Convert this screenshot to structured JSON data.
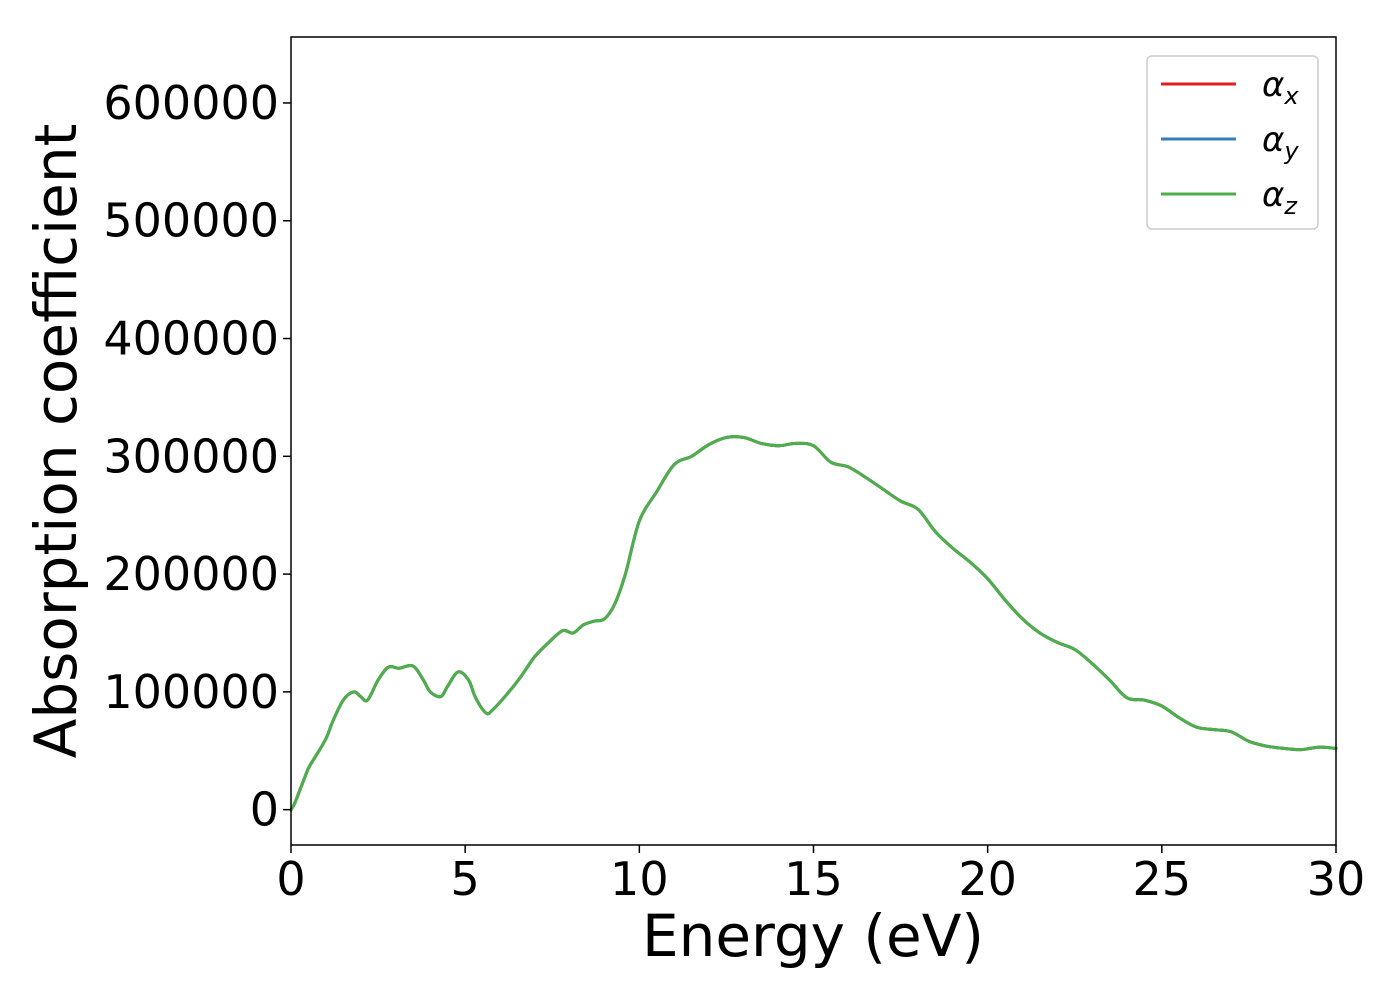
{
  "chart_data": {
    "type": "line",
    "title": "",
    "xlabel": "Energy (eV)",
    "ylabel": "Absorption coefficient",
    "xlim": [
      0,
      30
    ],
    "ylim": [
      -30000,
      656000
    ],
    "xticks": [
      0,
      5,
      10,
      15,
      20,
      25,
      30
    ],
    "yticks": [
      0,
      100000,
      200000,
      300000,
      400000,
      500000,
      600000
    ],
    "grid": false,
    "legend_position": "top-right",
    "series": [
      {
        "name": "α",
        "subscript": "x",
        "color": "#e41a1c",
        "x": [
          0,
          0.1,
          0.3,
          0.5,
          0.7,
          1.0,
          1.2,
          1.5,
          1.8,
          2.0,
          2.2,
          2.5,
          2.8,
          3.1,
          3.5,
          3.8,
          4.0,
          4.3,
          4.5,
          4.8,
          5.1,
          5.3,
          5.6,
          5.8,
          6.2,
          6.6,
          7.0,
          7.4,
          7.8,
          8.1,
          8.4,
          8.7,
          9.0,
          9.3,
          9.6,
          10.0,
          10.5,
          11.0,
          11.5,
          12.0,
          12.5,
          13.0,
          13.5,
          14.0,
          14.5,
          15.0,
          15.5,
          16.0,
          16.5,
          17.0,
          17.5,
          18.0,
          18.5,
          19.0,
          19.5,
          20.0,
          20.5,
          21.0,
          21.5,
          22.0,
          22.5,
          23.0,
          23.5,
          24.0,
          24.5,
          25.0,
          25.5,
          26.0,
          26.5,
          27.0,
          27.5,
          28.0,
          28.5,
          29.0,
          29.5,
          30.0
        ],
        "values": [
          0,
          5000,
          20000,
          35000,
          45000,
          60000,
          75000,
          93000,
          100000,
          96000,
          93000,
          110000,
          121000,
          120000,
          122000,
          110000,
          100000,
          96000,
          105000,
          117000,
          110000,
          95000,
          82000,
          85000,
          98000,
          113000,
          130000,
          142000,
          152000,
          150000,
          157000,
          160000,
          162000,
          175000,
          200000,
          245000,
          270000,
          293000,
          300000,
          310000,
          316000,
          316000,
          311000,
          309000,
          311000,
          309000,
          295000,
          291000,
          282000,
          272000,
          262000,
          255000,
          236000,
          222000,
          210000,
          196000,
          178000,
          162000,
          150000,
          142000,
          136000,
          124000,
          110000,
          95000,
          93000,
          88000,
          78000,
          70000,
          68000,
          66000,
          58000,
          54000,
          52000,
          51000,
          53000,
          52000
        ]
      },
      {
        "name": "α",
        "subscript": "y",
        "color": "#377eb8",
        "x": [
          0,
          0.1,
          0.3,
          0.5,
          0.7,
          1.0,
          1.2,
          1.5,
          1.8,
          2.0,
          2.2,
          2.5,
          2.8,
          3.1,
          3.5,
          3.8,
          4.0,
          4.3,
          4.5,
          4.8,
          5.1,
          5.3,
          5.6,
          5.8,
          6.2,
          6.6,
          7.0,
          7.4,
          7.8,
          8.1,
          8.4,
          8.7,
          9.0,
          9.3,
          9.6,
          10.0,
          10.5,
          11.0,
          11.5,
          12.0,
          12.5,
          13.0,
          13.5,
          14.0,
          14.5,
          15.0,
          15.5,
          16.0,
          16.5,
          17.0,
          17.5,
          18.0,
          18.5,
          19.0,
          19.5,
          20.0,
          20.5,
          21.0,
          21.5,
          22.0,
          22.5,
          23.0,
          23.5,
          24.0,
          24.5,
          25.0,
          25.5,
          26.0,
          26.5,
          27.0,
          27.5,
          28.0,
          28.5,
          29.0,
          29.5,
          30.0
        ],
        "values": [
          0,
          5000,
          20000,
          35000,
          45000,
          60000,
          75000,
          93000,
          100000,
          96000,
          93000,
          110000,
          121000,
          120000,
          122000,
          110000,
          100000,
          96000,
          105000,
          117000,
          110000,
          95000,
          82000,
          85000,
          98000,
          113000,
          130000,
          142000,
          152000,
          150000,
          157000,
          160000,
          162000,
          175000,
          200000,
          245000,
          270000,
          293000,
          300000,
          310000,
          316000,
          316000,
          311000,
          309000,
          311000,
          309000,
          295000,
          291000,
          282000,
          272000,
          262000,
          255000,
          236000,
          222000,
          210000,
          196000,
          178000,
          162000,
          150000,
          142000,
          136000,
          124000,
          110000,
          95000,
          93000,
          88000,
          78000,
          70000,
          68000,
          66000,
          58000,
          54000,
          52000,
          51000,
          53000,
          52000
        ]
      },
      {
        "name": "α",
        "subscript": "z",
        "color": "#4daf4a",
        "x": [
          0,
          0.1,
          0.3,
          0.5,
          0.7,
          1.0,
          1.2,
          1.5,
          1.8,
          2.0,
          2.2,
          2.5,
          2.8,
          3.1,
          3.5,
          3.8,
          4.0,
          4.3,
          4.5,
          4.8,
          5.1,
          5.3,
          5.6,
          5.8,
          6.2,
          6.6,
          7.0,
          7.4,
          7.8,
          8.1,
          8.4,
          8.7,
          9.0,
          9.3,
          9.6,
          10.0,
          10.5,
          11.0,
          11.5,
          12.0,
          12.5,
          13.0,
          13.5,
          14.0,
          14.5,
          15.0,
          15.5,
          16.0,
          16.5,
          17.0,
          17.5,
          18.0,
          18.5,
          19.0,
          19.5,
          20.0,
          20.5,
          21.0,
          21.5,
          22.0,
          22.5,
          23.0,
          23.5,
          24.0,
          24.5,
          25.0,
          25.5,
          26.0,
          26.5,
          27.0,
          27.5,
          28.0,
          28.5,
          29.0,
          29.5,
          30.0
        ],
        "values": [
          0,
          5000,
          20000,
          35000,
          45000,
          60000,
          75000,
          93000,
          100000,
          96000,
          93000,
          110000,
          121000,
          120000,
          122000,
          110000,
          100000,
          96000,
          105000,
          117000,
          110000,
          95000,
          82000,
          85000,
          98000,
          113000,
          130000,
          142000,
          152000,
          150000,
          157000,
          160000,
          162000,
          175000,
          200000,
          245000,
          270000,
          293000,
          300000,
          310000,
          316000,
          316000,
          311000,
          309000,
          311000,
          309000,
          295000,
          291000,
          282000,
          272000,
          262000,
          255000,
          236000,
          222000,
          210000,
          196000,
          178000,
          162000,
          150000,
          142000,
          136000,
          124000,
          110000,
          95000,
          93000,
          88000,
          78000,
          70000,
          68000,
          66000,
          58000,
          54000,
          52000,
          51000,
          53000,
          52000
        ]
      }
    ]
  }
}
